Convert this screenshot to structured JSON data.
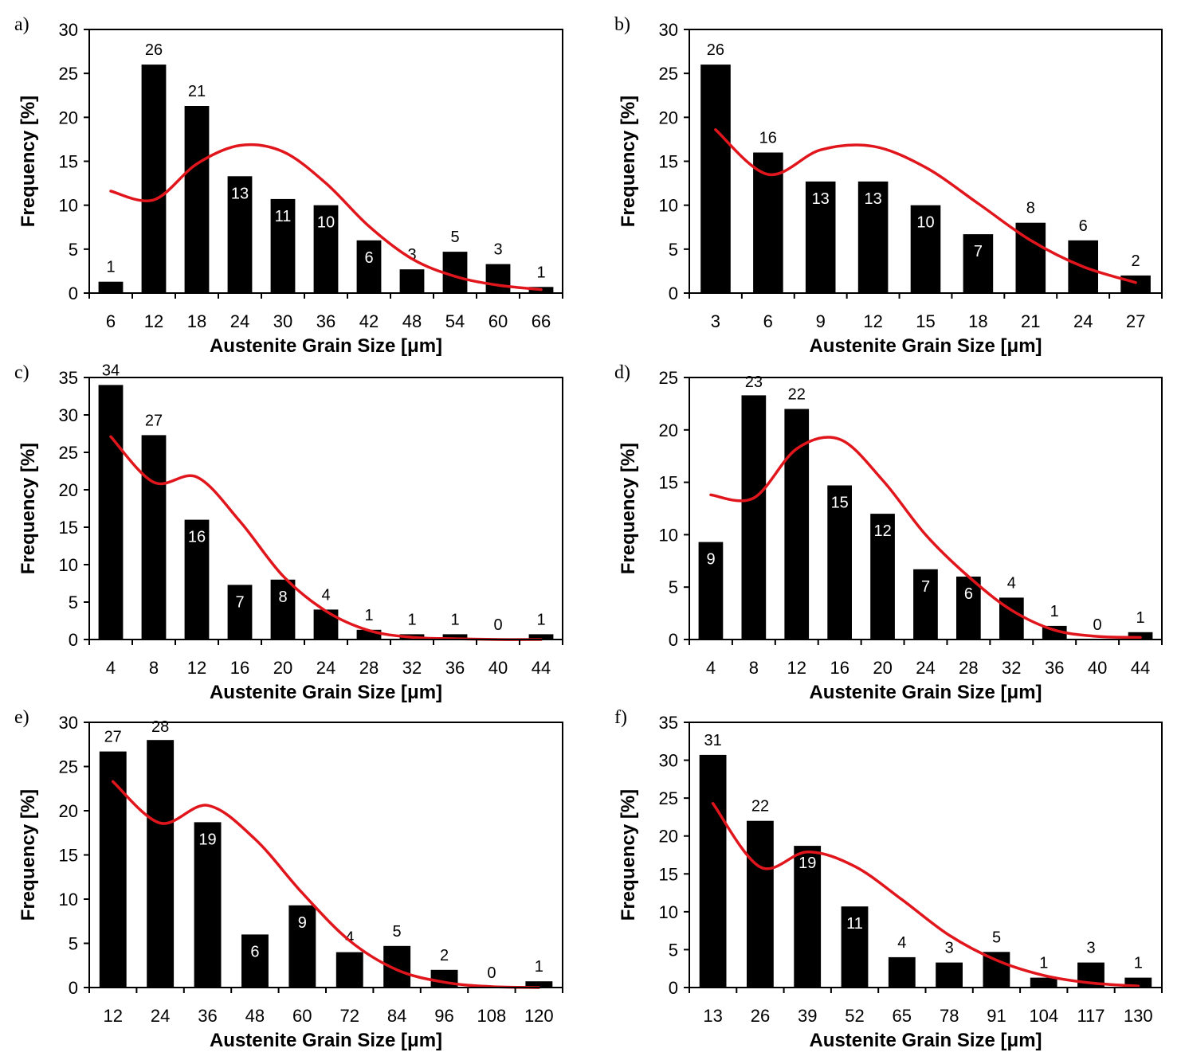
{
  "figure": {
    "xlabel": "Austenite Grain Size [μm]",
    "ylabel": "Frequency [%]",
    "colors": {
      "bar": "#000000",
      "fit": "#e0161c",
      "axis": "#000000"
    }
  },
  "chart_data": [
    {
      "panel": "a)",
      "type": "bar",
      "categories": [
        "6",
        "12",
        "18",
        "24",
        "30",
        "36",
        "42",
        "48",
        "54",
        "60",
        "66"
      ],
      "values": [
        1.3,
        26,
        21.3,
        13.3,
        10.7,
        10,
        6,
        2.7,
        4.7,
        3.3,
        0.7
      ],
      "data_labels": [
        "1",
        "26",
        "21",
        "13",
        "11",
        "10",
        "6",
        "3",
        "5",
        "3",
        "1"
      ],
      "fit_curve": [
        11.6,
        10.6,
        14.7,
        16.8,
        16.1,
        12.5,
        7.6,
        3.9,
        1.9,
        0.9,
        0.4
      ],
      "ylim": [
        0,
        30
      ],
      "yticks": [
        0,
        5,
        10,
        15,
        20,
        25,
        30
      ],
      "xlabel": "Austenite Grain Size [μm]",
      "ylabel": "Frequency [%]"
    },
    {
      "panel": "b)",
      "type": "bar",
      "categories": [
        "3",
        "6",
        "9",
        "12",
        "15",
        "18",
        "21",
        "24",
        "27"
      ],
      "values": [
        26,
        16,
        12.7,
        12.7,
        10,
        6.7,
        8,
        6,
        2
      ],
      "data_labels": [
        "26",
        "16",
        "13",
        "13",
        "10",
        "7",
        "8",
        "6",
        "2"
      ],
      "fit_curve": [
        18.6,
        13.5,
        16.3,
        16.7,
        14.3,
        10.2,
        6,
        3,
        1.2
      ],
      "ylim": [
        0,
        30
      ],
      "yticks": [
        0,
        5,
        10,
        15,
        20,
        25,
        30
      ],
      "xlabel": "Austenite Grain Size [μm]",
      "ylabel": "Frequency [%]"
    },
    {
      "panel": "c)",
      "type": "bar",
      "categories": [
        "4",
        "8",
        "12",
        "16",
        "20",
        "24",
        "28",
        "32",
        "36",
        "40",
        "44"
      ],
      "values": [
        34,
        27.3,
        16,
        7.3,
        8,
        4,
        1.3,
        0.7,
        0.7,
        0,
        0.7
      ],
      "data_labels": [
        "34",
        "27",
        "16",
        "7",
        "8",
        "4",
        "1",
        "1",
        "1",
        "0",
        "1"
      ],
      "fit_curve": [
        27.1,
        21,
        21.7,
        15.8,
        8.5,
        3.8,
        1.2,
        0.3,
        0.1,
        0,
        0
      ],
      "ylim": [
        0,
        35
      ],
      "yticks": [
        0,
        5,
        10,
        15,
        20,
        25,
        30,
        35
      ],
      "xlabel": "Austenite Grain Size [μm]",
      "ylabel": "Frequency [%]"
    },
    {
      "panel": "d)",
      "type": "bar",
      "categories": [
        "4",
        "8",
        "12",
        "16",
        "20",
        "24",
        "28",
        "32",
        "36",
        "40",
        "44"
      ],
      "values": [
        9.3,
        23.3,
        22,
        14.7,
        12,
        6.7,
        6,
        4,
        1.3,
        0,
        0.7
      ],
      "data_labels": [
        "9",
        "23",
        "22",
        "15",
        "12",
        "7",
        "6",
        "4",
        "1",
        "0",
        "1"
      ],
      "fit_curve": [
        13.8,
        13.5,
        18.2,
        19.1,
        15.2,
        10,
        6,
        2.8,
        0.9,
        0.3,
        0.2
      ],
      "ylim": [
        0,
        25
      ],
      "yticks": [
        0,
        5,
        10,
        15,
        20,
        25
      ],
      "xlabel": "Austenite Grain Size [μm]",
      "ylabel": "Frequency [%]"
    },
    {
      "panel": "e)",
      "type": "bar",
      "categories": [
        "12",
        "24",
        "36",
        "48",
        "60",
        "72",
        "84",
        "96",
        "108",
        "120"
      ],
      "values": [
        26.7,
        28,
        18.7,
        6,
        9.3,
        4,
        4.7,
        2,
        0,
        0.7
      ],
      "data_labels": [
        "27",
        "28",
        "19",
        "6",
        "9",
        "4",
        "5",
        "2",
        "0",
        "1"
      ],
      "fit_curve": [
        23.3,
        18.6,
        20.6,
        16.8,
        10.7,
        5.3,
        2,
        0.6,
        0.1,
        0
      ],
      "ylim": [
        0,
        30
      ],
      "yticks": [
        0,
        5,
        10,
        15,
        20,
        25,
        30
      ],
      "xlabel": "Austenite Grain Size [μm]",
      "ylabel": "Frequency [%]"
    },
    {
      "panel": "f)",
      "type": "bar",
      "categories": [
        "13",
        "26",
        "39",
        "52",
        "65",
        "78",
        "91",
        "104",
        "117",
        "130"
      ],
      "values": [
        30.7,
        22,
        18.7,
        10.7,
        4,
        3.3,
        4.7,
        1.3,
        3.3,
        1.3
      ],
      "data_labels": [
        "31",
        "22",
        "19",
        "11",
        "4",
        "3",
        "5",
        "1",
        "3",
        "1"
      ],
      "fit_curve": [
        24.3,
        15.9,
        17.9,
        16,
        11.6,
        6.9,
        3.6,
        1.6,
        0.6,
        0.2
      ],
      "ylim": [
        0,
        35
      ],
      "yticks": [
        0,
        5,
        10,
        15,
        20,
        25,
        30,
        35
      ],
      "xlabel": "Austenite Grain Size [μm]",
      "ylabel": "Frequency [%]"
    }
  ]
}
